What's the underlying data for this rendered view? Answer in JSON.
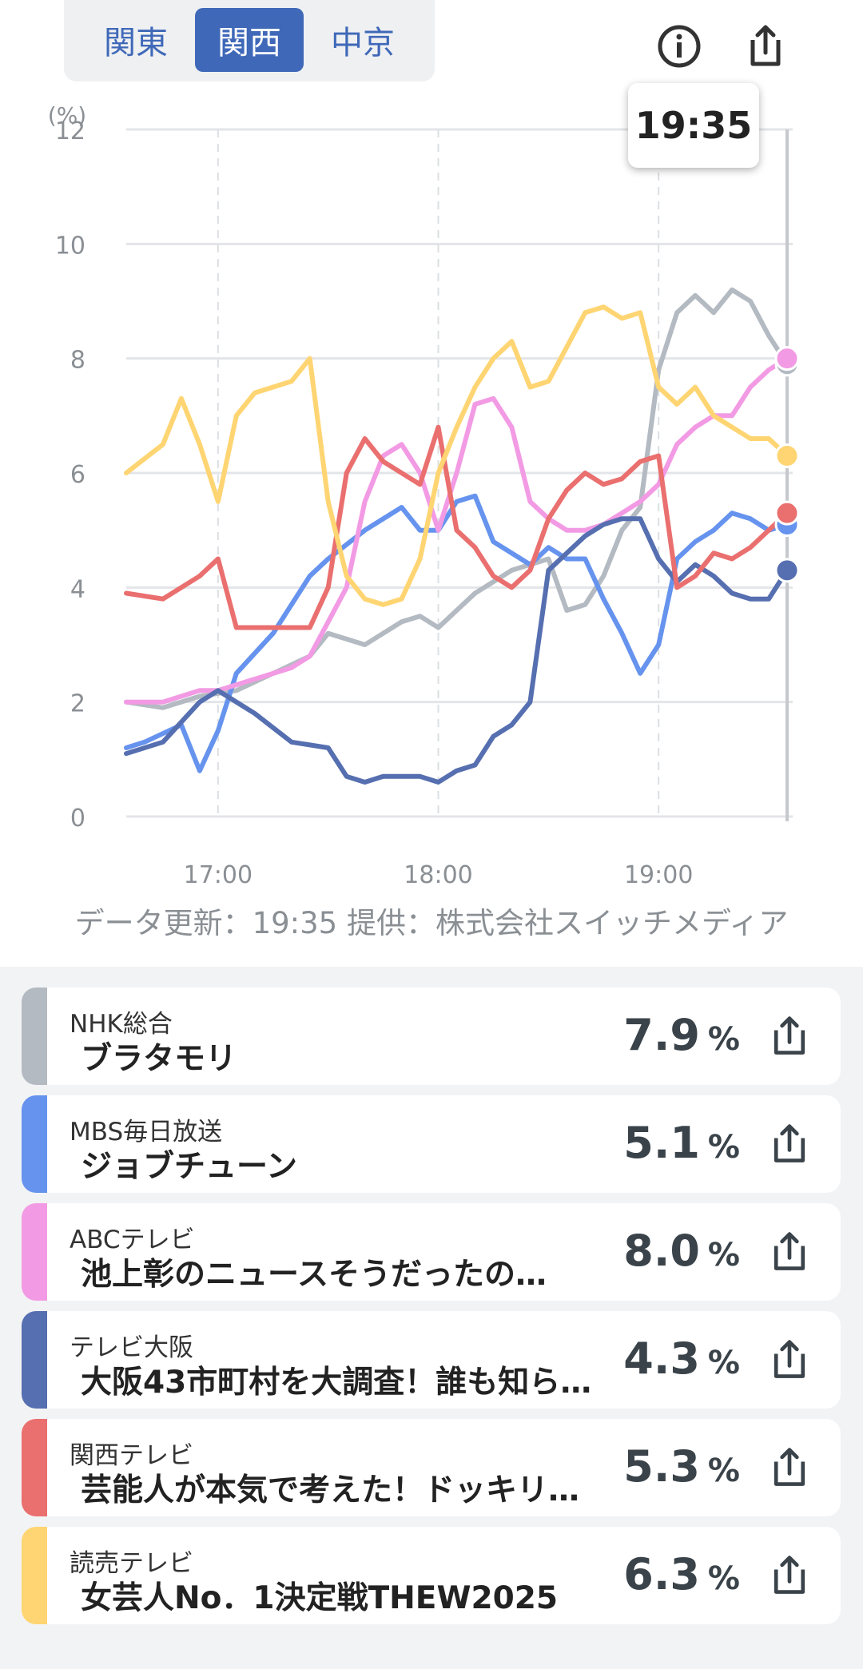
{
  "region_tabs": [
    {
      "label": "関東",
      "active": false
    },
    {
      "label": "関西",
      "active": true
    },
    {
      "label": "中京",
      "active": false
    }
  ],
  "icons": {
    "info": "info-icon",
    "share": "share-icon"
  },
  "tooltip_time": "19:35",
  "chart_data": {
    "type": "line",
    "ylabel": "(%)",
    "ylim": [
      0,
      12
    ],
    "yticks": [
      0,
      2,
      4,
      6,
      8,
      10,
      12
    ],
    "xlim": [
      "16:35",
      "19:35"
    ],
    "xticks": [
      "17:00",
      "18:00",
      "19:00"
    ],
    "grid": true,
    "series": [
      {
        "name": "NHK総合",
        "color": "#b4bac2",
        "x": [
          "16:35",
          "16:45",
          "16:55",
          "17:05",
          "17:15",
          "17:25",
          "17:30",
          "17:40",
          "17:50",
          "17:55",
          "18:00",
          "18:10",
          "18:20",
          "18:30",
          "18:35",
          "18:40",
          "18:45",
          "18:50",
          "18:55",
          "19:00",
          "19:05",
          "19:10",
          "19:15",
          "19:20",
          "19:25",
          "19:30",
          "19:35"
        ],
        "y": [
          2.0,
          1.9,
          2.1,
          2.2,
          2.5,
          2.8,
          3.2,
          3.0,
          3.4,
          3.5,
          3.3,
          3.9,
          4.3,
          4.5,
          3.6,
          3.7,
          4.2,
          5.0,
          5.4,
          7.8,
          8.8,
          9.1,
          8.8,
          9.2,
          9.0,
          8.4,
          7.9
        ]
      },
      {
        "name": "MBS毎日放送",
        "color": "#6693ee",
        "x": [
          "16:35",
          "16:40",
          "16:50",
          "16:55",
          "17:00",
          "17:05",
          "17:15",
          "17:25",
          "17:30",
          "17:40",
          "17:45",
          "17:50",
          "17:55",
          "18:00",
          "18:05",
          "18:10",
          "18:15",
          "18:20",
          "18:25",
          "18:30",
          "18:35",
          "18:40",
          "18:45",
          "18:50",
          "18:55",
          "19:00",
          "19:05",
          "19:10",
          "19:15",
          "19:20",
          "19:25",
          "19:30",
          "19:35"
        ],
        "y": [
          1.2,
          1.3,
          1.6,
          0.8,
          1.5,
          2.5,
          3.2,
          4.2,
          4.5,
          5.0,
          5.2,
          5.4,
          5.0,
          5.0,
          5.5,
          5.6,
          4.8,
          4.6,
          4.4,
          4.7,
          4.5,
          4.5,
          3.8,
          3.2,
          2.5,
          3.0,
          4.5,
          4.8,
          5.0,
          5.3,
          5.2,
          5.0,
          5.1
        ]
      },
      {
        "name": "ABCテレビ",
        "color": "#f29be4",
        "x": [
          "16:35",
          "16:45",
          "16:55",
          "17:00",
          "17:10",
          "17:20",
          "17:25",
          "17:35",
          "17:40",
          "17:45",
          "17:50",
          "17:55",
          "18:00",
          "18:05",
          "18:10",
          "18:15",
          "18:20",
          "18:25",
          "18:30",
          "18:35",
          "18:40",
          "18:45",
          "18:50",
          "18:55",
          "19:00",
          "19:05",
          "19:10",
          "19:15",
          "19:20",
          "19:25",
          "19:30",
          "19:35"
        ],
        "y": [
          2.0,
          2.0,
          2.2,
          2.2,
          2.4,
          2.6,
          2.8,
          4.0,
          5.5,
          6.3,
          6.5,
          6.0,
          5.0,
          6.0,
          7.2,
          7.3,
          6.8,
          5.5,
          5.2,
          5.0,
          5.0,
          5.1,
          5.3,
          5.5,
          5.8,
          6.5,
          6.8,
          7.0,
          7.0,
          7.5,
          7.8,
          8.0
        ]
      },
      {
        "name": "テレビ大阪",
        "color": "#566fb0",
        "x": [
          "16:35",
          "16:45",
          "16:55",
          "17:00",
          "17:05",
          "17:10",
          "17:20",
          "17:30",
          "17:35",
          "17:40",
          "17:45",
          "17:50",
          "17:55",
          "18:00",
          "18:05",
          "18:10",
          "18:15",
          "18:20",
          "18:25",
          "18:30",
          "18:35",
          "18:40",
          "18:45",
          "18:50",
          "18:55",
          "19:00",
          "19:05",
          "19:10",
          "19:15",
          "19:20",
          "19:25",
          "19:30",
          "19:35"
        ],
        "y": [
          1.1,
          1.3,
          2.0,
          2.2,
          2.0,
          1.8,
          1.3,
          1.2,
          0.7,
          0.6,
          0.7,
          0.7,
          0.7,
          0.6,
          0.8,
          0.9,
          1.4,
          1.6,
          2.0,
          4.3,
          4.6,
          4.9,
          5.1,
          5.2,
          5.2,
          4.5,
          4.1,
          4.4,
          4.2,
          3.9,
          3.8,
          3.8,
          4.3
        ]
      },
      {
        "name": "関西テレビ",
        "color": "#ea6f6f",
        "x": [
          "16:35",
          "16:45",
          "16:55",
          "17:00",
          "17:05",
          "17:15",
          "17:25",
          "17:30",
          "17:35",
          "17:40",
          "17:45",
          "17:50",
          "17:55",
          "18:00",
          "18:05",
          "18:10",
          "18:15",
          "18:20",
          "18:25",
          "18:30",
          "18:35",
          "18:40",
          "18:45",
          "18:50",
          "18:55",
          "19:00",
          "19:05",
          "19:10",
          "19:15",
          "19:20",
          "19:25",
          "19:30",
          "19:35"
        ],
        "y": [
          3.9,
          3.8,
          4.2,
          4.5,
          3.3,
          3.3,
          3.3,
          4.0,
          6.0,
          6.6,
          6.2,
          6.0,
          5.8,
          6.8,
          5.0,
          4.7,
          4.2,
          4.0,
          4.3,
          5.2,
          5.7,
          6.0,
          5.8,
          5.9,
          6.2,
          6.3,
          4.0,
          4.2,
          4.6,
          4.5,
          4.7,
          5.0,
          5.3
        ]
      },
      {
        "name": "読売テレビ",
        "color": "#fed572",
        "x": [
          "16:35",
          "16:45",
          "16:50",
          "16:55",
          "17:00",
          "17:05",
          "17:10",
          "17:20",
          "17:25",
          "17:30",
          "17:35",
          "17:40",
          "17:45",
          "17:50",
          "17:55",
          "18:00",
          "18:05",
          "18:10",
          "18:15",
          "18:20",
          "18:25",
          "18:30",
          "18:35",
          "18:40",
          "18:45",
          "18:50",
          "18:55",
          "19:00",
          "19:05",
          "19:10",
          "19:15",
          "19:20",
          "19:25",
          "19:30",
          "19:35"
        ],
        "y": [
          6.0,
          6.5,
          7.3,
          6.5,
          5.5,
          7.0,
          7.4,
          7.6,
          8.0,
          5.5,
          4.2,
          3.8,
          3.7,
          3.8,
          4.5,
          6.0,
          6.8,
          7.5,
          8.0,
          8.3,
          7.5,
          7.6,
          8.2,
          8.8,
          8.9,
          8.7,
          8.8,
          7.5,
          7.2,
          7.5,
          7.0,
          6.8,
          6.6,
          6.6,
          6.3
        ]
      }
    ]
  },
  "credit": "データ更新：19:35 提供：株式会社スイッチメディア",
  "programs": [
    {
      "channel": "NHK総合",
      "program": "ブラタモリ",
      "rating": "7.9",
      "unit": "%",
      "color": "#b4bac2"
    },
    {
      "channel": "MBS毎日放送",
      "program": "ジョブチューン",
      "rating": "5.1",
      "unit": "%",
      "color": "#6693ee"
    },
    {
      "channel": "ABCテレビ",
      "program": "池上彰のニュースそうだったの…",
      "rating": "8.0",
      "unit": "%",
      "color": "#f29be4"
    },
    {
      "channel": "テレビ大阪",
      "program": "大阪43市町村を大調査！誰も知ら…",
      "rating": "4.3",
      "unit": "%",
      "color": "#566fb0"
    },
    {
      "channel": "関西テレビ",
      "program": "芸能人が本気で考えた！ドッキリ…",
      "rating": "5.3",
      "unit": "%",
      "color": "#ea6f6f"
    },
    {
      "channel": "読売テレビ",
      "program": "女芸人No．1決定戦THEW2025",
      "rating": "6.3",
      "unit": "%",
      "color": "#fed572"
    }
  ]
}
